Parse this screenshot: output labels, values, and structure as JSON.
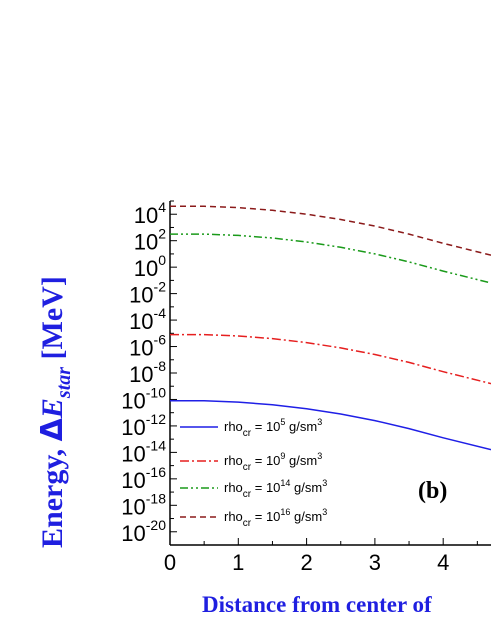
{
  "chart_data": {
    "type": "line",
    "title": "",
    "xlabel": "Distance from center of",
    "ylabel": {
      "prefix": "Energy, ",
      "delta": "Δ",
      "E": "E",
      "sub": "star",
      "suffix": " [MeV]"
    },
    "panel_label": "(b)",
    "xlim": [
      0,
      4.7
    ],
    "ylim_log10": [
      -21,
      5
    ],
    "y_scale": "log",
    "x_ticks": [
      0,
      1,
      2,
      3,
      4
    ],
    "y_ticks_exp": [
      -20,
      -18,
      -16,
      -14,
      -12,
      -10,
      -8,
      -6,
      -4,
      -2,
      0,
      2,
      4
    ],
    "y_tick_base": "10",
    "legend_placement": "bottom-left",
    "series": [
      {
        "name": "rho",
        "sub": "cr",
        "label_main": " = 10",
        "label_exp": "5",
        "label_unit": " g/sm",
        "label_unit_exp": "3",
        "color": "#1f1fe6",
        "dash": "solid",
        "x": [
          0,
          0.5,
          1,
          1.5,
          2,
          2.5,
          3,
          3.5,
          4,
          4.7
        ],
        "log10_y": [
          -10.1,
          -10.1,
          -10.2,
          -10.4,
          -10.7,
          -11.1,
          -11.6,
          -12.2,
          -12.9,
          -13.8
        ]
      },
      {
        "name": "rho",
        "sub": "cr",
        "label_main": " = 10",
        "label_exp": "9",
        "label_unit": " g/sm",
        "label_unit_exp": "3",
        "color": "#e61f1f",
        "dash": "dashdot",
        "x": [
          0,
          0.5,
          1,
          1.5,
          2,
          2.5,
          3,
          3.5,
          4,
          4.7
        ],
        "log10_y": [
          -5.1,
          -5.1,
          -5.2,
          -5.4,
          -5.7,
          -6.1,
          -6.6,
          -7.2,
          -7.9,
          -8.8
        ]
      },
      {
        "name": "rho",
        "sub": "cr",
        "label_main": " = 10",
        "label_exp": "14",
        "label_unit": " g/sm",
        "label_unit_exp": "3",
        "color": "#1a9a1a",
        "dash": "dashdotdot",
        "x": [
          0,
          0.5,
          1,
          1.5,
          2,
          2.5,
          3,
          3.5,
          4,
          4.7
        ],
        "log10_y": [
          2.5,
          2.5,
          2.4,
          2.2,
          1.9,
          1.5,
          1.0,
          0.4,
          -0.3,
          -1.2
        ]
      },
      {
        "name": "rho",
        "sub": "cr",
        "label_main": " = 10",
        "label_exp": "16",
        "label_unit": " g/sm",
        "label_unit_exp": "3",
        "color": "#8b1a1a",
        "dash": "dashed",
        "x": [
          0,
          0.5,
          1,
          1.5,
          2,
          2.5,
          3,
          3.5,
          4,
          4.7
        ],
        "log10_y": [
          4.6,
          4.6,
          4.5,
          4.3,
          4.0,
          3.6,
          3.1,
          2.5,
          1.8,
          0.9
        ]
      }
    ]
  }
}
